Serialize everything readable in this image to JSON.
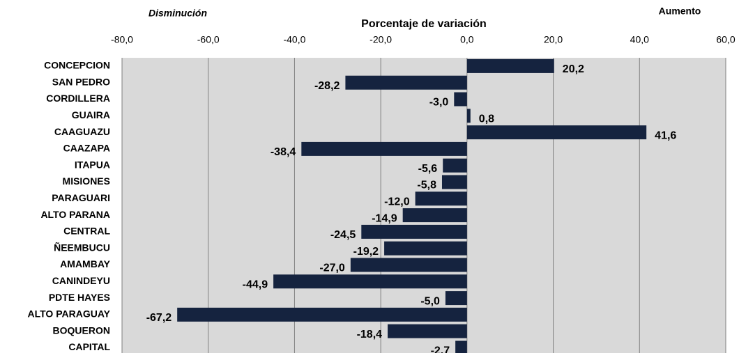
{
  "chart_data": {
    "type": "bar",
    "orientation": "horizontal",
    "title": "Porcentaje de variación",
    "annotations": [
      "Disminución",
      "Aumento"
    ],
    "categories": [
      "CONCEPCION",
      "SAN PEDRO",
      "CORDILLERA",
      "GUAIRA",
      "CAAGUAZU",
      "CAAZAPA",
      "ITAPUA",
      "MISIONES",
      "PARAGUARI",
      "ALTO PARANA",
      "CENTRAL",
      "ÑEEMBUCU",
      "AMAMBAY",
      "CANINDEYU",
      "PDTE HAYES",
      "ALTO PARAGUAY",
      "BOQUERON",
      "CAPITAL"
    ],
    "values": [
      20.2,
      -28.2,
      -3.0,
      0.8,
      41.6,
      -38.4,
      -5.6,
      -5.8,
      -12.0,
      -14.9,
      -24.5,
      -19.2,
      -27.0,
      -44.9,
      -5.0,
      -67.2,
      -18.4,
      -2.7
    ],
    "value_labels": [
      "20,2",
      "-28,2",
      "-3,0",
      "0,8",
      "41,6",
      "-38,4",
      "-5,6",
      "-5,8",
      "-12,0",
      "-14,9",
      "-24,5",
      "-19,2",
      "-27,0",
      "-44,9",
      "-5,0",
      "-67,2",
      "-18,4",
      "-2,7"
    ],
    "color": "#15233f",
    "xlim": [
      -80,
      60
    ],
    "xticks": [
      {
        "value": -80,
        "label": "-80,0"
      },
      {
        "value": -60,
        "label": "-60,0"
      },
      {
        "value": -40,
        "label": "-40,0"
      },
      {
        "value": -20,
        "label": "-20,0"
      },
      {
        "value": 0,
        "label": "0,0"
      },
      {
        "value": 20,
        "label": "20,0"
      },
      {
        "value": 40,
        "label": "40,0"
      },
      {
        "value": 60,
        "label": "60,0"
      }
    ],
    "grid": true
  }
}
